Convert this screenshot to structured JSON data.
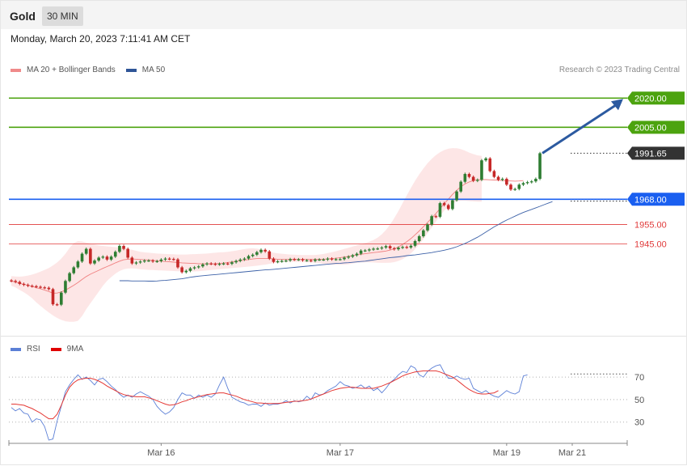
{
  "header": {
    "title": "Gold",
    "timeframe": "30 MIN"
  },
  "datetime": "Monday, March 20, 2023 7:11:41 AM CET",
  "credit": "Research © 2023 Trading Central",
  "colors": {
    "resistance": "#4ca30f",
    "current": "#333333",
    "pivot": "#1a5ff0",
    "support": "#e03a3a",
    "candle_up": "#2e7d32",
    "candle_down": "#c62828",
    "band_fill": "#fde2e2",
    "ma20": "#f08080",
    "ma50": "#3d62a8",
    "rsi": "#5b7fd6",
    "rsi_ma": "#e53935",
    "arrow": "#2c5aa0"
  },
  "legend": {
    "main": [
      {
        "label": "MA 20 + Bollinger Bands",
        "color": "#f08a8a"
      },
      {
        "label": "MA 50",
        "color": "#2f5597"
      }
    ],
    "rsi": [
      {
        "label": "RSI",
        "color": "#5b7fd6"
      },
      {
        "label": "9MA",
        "color": "#e00000"
      }
    ]
  },
  "chart_data": [
    {
      "type": "candlestick",
      "title": "Gold",
      "timeframe": "30 MIN",
      "ylim": [
        1902,
        2033
      ],
      "x_ticks": [
        "Mar 16",
        "Mar 17",
        "Mar 19",
        "Mar 21"
      ],
      "levels": [
        {
          "label": "2020.00",
          "value": 2020.0,
          "kind": "resistance"
        },
        {
          "label": "2005.00",
          "value": 2005.0,
          "kind": "resistance"
        },
        {
          "label": "1991.65",
          "value": 1991.65,
          "kind": "current"
        },
        {
          "label": "1968.00",
          "value": 1968.0,
          "kind": "pivot"
        },
        {
          "label": "1955.00",
          "value": 1955.0,
          "kind": "support"
        },
        {
          "label": "1945.00",
          "value": 1945.0,
          "kind": "support"
        }
      ],
      "closes": [
        1926,
        1925.5,
        1924.5,
        1924,
        1923.5,
        1923.3,
        1923,
        1922.7,
        1922.5,
        1921.8,
        1914,
        1913.8,
        1920,
        1926,
        1930,
        1933,
        1936,
        1940,
        1942.5,
        1935,
        1936.5,
        1938,
        1938.5,
        1937,
        1938.5,
        1941,
        1944,
        1942.5,
        1938,
        1935,
        1935.5,
        1936,
        1936.5,
        1936.5,
        1936,
        1936.2,
        1937,
        1937.5,
        1937.3,
        1937.1,
        1933,
        1930.5,
        1931.2,
        1932.5,
        1933,
        1933.5,
        1934.5,
        1935,
        1934.8,
        1934.5,
        1934.8,
        1935,
        1934.8,
        1935.6,
        1936.3,
        1937,
        1937.5,
        1938.8,
        1939.5,
        1940.8,
        1942,
        1941.2,
        1937.5,
        1935.8,
        1936.1,
        1936.3,
        1936.5,
        1937.2,
        1937,
        1937.1,
        1936.6,
        1936.6,
        1936.3,
        1937,
        1937,
        1937,
        1937.5,
        1937.1,
        1937.2,
        1937.2,
        1938,
        1938.5,
        1939.2,
        1940,
        1941.6,
        1941.7,
        1942.2,
        1942.6,
        1942.7,
        1943.2,
        1943.9,
        1942.8,
        1942.3,
        1943.1,
        1943.5,
        1943.2,
        1944.1,
        1946.5,
        1949,
        1952,
        1955,
        1959.3,
        1959,
        1966,
        1965,
        1963,
        1967.5,
        1972,
        1977,
        1981,
        1979.5,
        1977.5,
        1978,
        1988,
        1989,
        1982.5,
        1979.5,
        1978,
        1978.5,
        1975.5,
        1973,
        1973.3,
        1975.5,
        1976.3,
        1976.8,
        1977.2,
        1978.5,
        1991.65
      ],
      "ma20": [
        1926,
        1925.5,
        1924.8,
        1924.3,
        1923.8,
        1923.2,
        1922.5,
        1922,
        1921.3,
        1920.6,
        1919.7,
        1919.8,
        1920.4,
        1921.3,
        1922.5,
        1923.8,
        1925.2,
        1926.8,
        1928.3,
        1929.5,
        1930.5,
        1931.5,
        1932.5,
        1933.4,
        1934.3,
        1935.3,
        1936.2,
        1936.9,
        1937.2,
        1937.3,
        1937.2,
        1937,
        1936.9,
        1936.8,
        1936.6,
        1936.4,
        1936.2,
        1936,
        1935.9,
        1935.7,
        1935.5,
        1935.3,
        1935.2,
        1935.1,
        1935,
        1934.9,
        1934.8,
        1934.8,
        1934.8,
        1934.9,
        1935,
        1935.2,
        1935.5,
        1935.8,
        1936.1,
        1936.4,
        1936.7,
        1937,
        1937.3,
        1937.5,
        1937.6,
        1937.6,
        1937.5,
        1937.3,
        1937.2,
        1937.1,
        1937.1,
        1937.1,
        1937.2,
        1937.2,
        1937.2,
        1937.2,
        1937.1,
        1937.1,
        1937.1,
        1937.2,
        1937.3,
        1937.5,
        1937.7,
        1938,
        1938.3,
        1938.6,
        1939,
        1939.4,
        1939.7,
        1940,
        1940.3,
        1940.6,
        1940.8,
        1941.1,
        1941.4,
        1941.9,
        1942.5,
        1943.5,
        1944.8,
        1946.2,
        1947.8,
        1949.7,
        1951.7,
        1953.9,
        1956.1,
        1958.4,
        1960.7,
        1963.2,
        1965.7,
        1968.1,
        1970.5,
        1972.6,
        1974.4,
        1975.9,
        1976.9,
        1977.6,
        1978,
        1978.1,
        1978.1,
        1978,
        1977.9,
        1977.8,
        1977.6,
        1977.5,
        1977.4,
        1977.3,
        1977.4,
        1977.6
      ],
      "bb_upper": [
        1928.5,
        1928.3,
        1928.2,
        1928.4,
        1928.8,
        1929.3,
        1930,
        1930.8,
        1931.7,
        1932.7,
        1934,
        1935.5,
        1937.5,
        1940,
        1943,
        1945.5,
        1946.5,
        1946.3,
        1945.8,
        1945.2,
        1944.7,
        1944.3,
        1944,
        1943.8,
        1943.6,
        1943.4,
        1943.2,
        1943,
        1942.5,
        1942,
        1941.5,
        1941,
        1940.7,
        1940.5,
        1940.3,
        1940.1,
        1940,
        1939.9,
        1939.8,
        1939.7,
        1939.6,
        1939.6,
        1939.6,
        1939.7,
        1939.8,
        1939.9,
        1940,
        1940.1,
        1940.3,
        1940.5,
        1940.7,
        1940.8,
        1941,
        1941.3,
        1941.6,
        1942,
        1942.4,
        1942.7,
        1942.8,
        1942.6,
        1942.2,
        1941.6,
        1941,
        1940.5,
        1940.2,
        1940,
        1939.8,
        1939.6,
        1939.5,
        1939.4,
        1939.3,
        1939.3,
        1939.3,
        1939.4,
        1939.6,
        1939.9,
        1940.3,
        1940.8,
        1941.3,
        1941.9,
        1942.5,
        1943.1,
        1943.7,
        1944.3,
        1944.9,
        1945.5,
        1946.2,
        1947.1,
        1948.3,
        1950,
        1952.2,
        1955,
        1958.3,
        1962,
        1966,
        1970,
        1973.8,
        1977.5,
        1980.8,
        1983.8,
        1986.5,
        1988.8,
        1990.7,
        1992.2,
        1993.3,
        1994,
        1994.3,
        1994.2,
        1993.8,
        1993,
        1992,
        1991.2,
        1990.6,
        1990.3
      ],
      "bb_lower": [
        1923.5,
        1922.7,
        1921.4,
        1920.2,
        1918.8,
        1917.1,
        1915,
        1913.2,
        1911.5,
        1909.8,
        1908.3,
        1907,
        1906,
        1905.3,
        1905,
        1905,
        1905.5,
        1908,
        1911.5,
        1914.5,
        1917.5,
        1920.5,
        1923.5,
        1926,
        1928,
        1929.8,
        1931.1,
        1932,
        1932.4,
        1932.5,
        1932.3,
        1932,
        1931.8,
        1931.7,
        1931.6,
        1931.5,
        1931.4,
        1931.3,
        1931.2,
        1931.1,
        1931,
        1930.9,
        1930.9,
        1930.9,
        1930.9,
        1931,
        1931.2,
        1931.4,
        1931.6,
        1931.8,
        1932,
        1932.2,
        1932.4,
        1932.6,
        1932.8,
        1933,
        1933.2,
        1933.4,
        1933.6,
        1933.8,
        1934.1,
        1934.4,
        1934.8,
        1935.2,
        1935.5,
        1935.7,
        1935.8,
        1935.8,
        1935.8,
        1935.8,
        1935.7,
        1935.6,
        1935.5,
        1935.3,
        1935.1,
        1934.8,
        1934.6,
        1934.4,
        1934.3,
        1934.3,
        1934.4,
        1934.6,
        1935,
        1935.3,
        1935.5,
        1935.6,
        1935.6,
        1935.5,
        1935.4,
        1935.3,
        1935.3,
        1935.4,
        1935.7,
        1936.3,
        1937.2,
        1938.5,
        1940.2,
        1942.3,
        1944.8,
        1947.5,
        1950.5,
        1953.5,
        1956.5,
        1959.5,
        1962.2,
        1964.2,
        1965.8,
        1966.9,
        1967.3,
        1967.3,
        1967.1,
        1966.9,
        1966.8,
        1966.8
      ],
      "ma50": [
        1926.1,
        1926.1,
        1926.1,
        1926,
        1926,
        1926,
        1926,
        1925.9,
        1925.9,
        1926,
        1926.2,
        1926.3,
        1926.5,
        1926.7,
        1926.9,
        1927.1,
        1927.5,
        1927.9,
        1928.2,
        1928.5,
        1928.7,
        1928.9,
        1929.1,
        1929.3,
        1929.5,
        1929.7,
        1929.9,
        1930.1,
        1930.3,
        1930.5,
        1930.7,
        1930.9,
        1931.1,
        1931.3,
        1931.5,
        1931.7,
        1931.8,
        1932,
        1932.2,
        1932.4,
        1932.6,
        1932.8,
        1933,
        1933.2,
        1933.4,
        1933.6,
        1933.8,
        1934,
        1934.2,
        1934.4,
        1934.6,
        1934.8,
        1935,
        1935.1,
        1935.3,
        1935.4,
        1935.6,
        1935.8,
        1936,
        1936.2,
        1936.5,
        1936.8,
        1937.1,
        1937.4,
        1937.7,
        1938,
        1938.2,
        1938.4,
        1938.7,
        1939,
        1939.2,
        1939.4,
        1939.7,
        1940,
        1940.3,
        1940.6,
        1941,
        1941.4,
        1941.8,
        1942.3,
        1942.9,
        1943.6,
        1944.4,
        1945.3,
        1946.3,
        1947.4,
        1948.5,
        1949.8,
        1951.1,
        1952.5,
        1953.8,
        1955,
        1956.2,
        1957.3,
        1958.3,
        1959.3,
        1960.3,
        1961.2,
        1962,
        1962.8,
        1963.6,
        1964.4,
        1965.2,
        1966,
        1966.8
      ],
      "ma50_offset": 26
    },
    {
      "type": "line",
      "title": "RSI",
      "ylim": [
        14,
        83
      ],
      "y_ticks": [
        70,
        50,
        30
      ],
      "series": [
        {
          "name": "RSI",
          "values": [
            43,
            40,
            42,
            38,
            37,
            30,
            33,
            32,
            26,
            14,
            15,
            31,
            44,
            57,
            63,
            68,
            72,
            68,
            70,
            67,
            63,
            68,
            69,
            66,
            62,
            59,
            55,
            52,
            54,
            52,
            55,
            57,
            55,
            53,
            50,
            44,
            40,
            37,
            39,
            43,
            50,
            56,
            54,
            54,
            51,
            54,
            52,
            54,
            52,
            55,
            63,
            70,
            60,
            52,
            50,
            48,
            47,
            45,
            46,
            46,
            44,
            47,
            45,
            46,
            46,
            47,
            49,
            47,
            49,
            48,
            49,
            53,
            50,
            56,
            54,
            55,
            58,
            60,
            62,
            66,
            63,
            62,
            60,
            61,
            63,
            60,
            62,
            58,
            60,
            56,
            60,
            65,
            68,
            72,
            75,
            74,
            80,
            78,
            72,
            70,
            75,
            78,
            80,
            81,
            74,
            69,
            69,
            71,
            69,
            68,
            69,
            60,
            58,
            56,
            58,
            55,
            53,
            52,
            55,
            58,
            56,
            55,
            57,
            71,
            72
          ]
        },
        {
          "name": "9MA",
          "values": [
            46,
            46,
            45.5,
            45,
            43.5,
            42,
            40,
            38,
            35.5,
            33,
            33,
            37,
            45,
            54,
            61,
            65,
            67.5,
            68.5,
            69,
            69,
            68,
            66.5,
            64.5,
            62,
            60,
            58,
            56,
            54.5,
            53.5,
            53,
            52.5,
            52.5,
            52.5,
            51.5,
            50.5,
            49,
            47.5,
            46,
            45,
            45.5,
            46.5,
            48,
            49,
            50.5,
            51.5,
            52.5,
            53.5,
            54.5,
            55,
            55.5,
            56,
            56,
            55,
            54,
            53,
            51.5,
            50,
            49,
            48,
            47,
            47,
            46.5,
            46.5,
            46.5,
            46.5,
            47,
            47.5,
            48,
            48.5,
            48.5,
            49,
            49.5,
            50.5,
            52,
            53.5,
            55,
            56.5,
            58,
            59,
            60,
            60.5,
            61,
            61,
            60.5,
            60,
            60,
            60,
            60,
            61,
            62,
            63.5,
            65,
            67,
            69,
            71,
            72.5,
            73.5,
            74.5,
            75,
            75.5,
            75.5,
            75.5,
            75.5,
            74.5,
            73,
            71.5,
            70,
            67.5,
            64.5,
            61.5,
            59,
            57,
            55.5,
            55,
            55,
            55.5,
            56,
            58
          ]
        }
      ]
    }
  ]
}
